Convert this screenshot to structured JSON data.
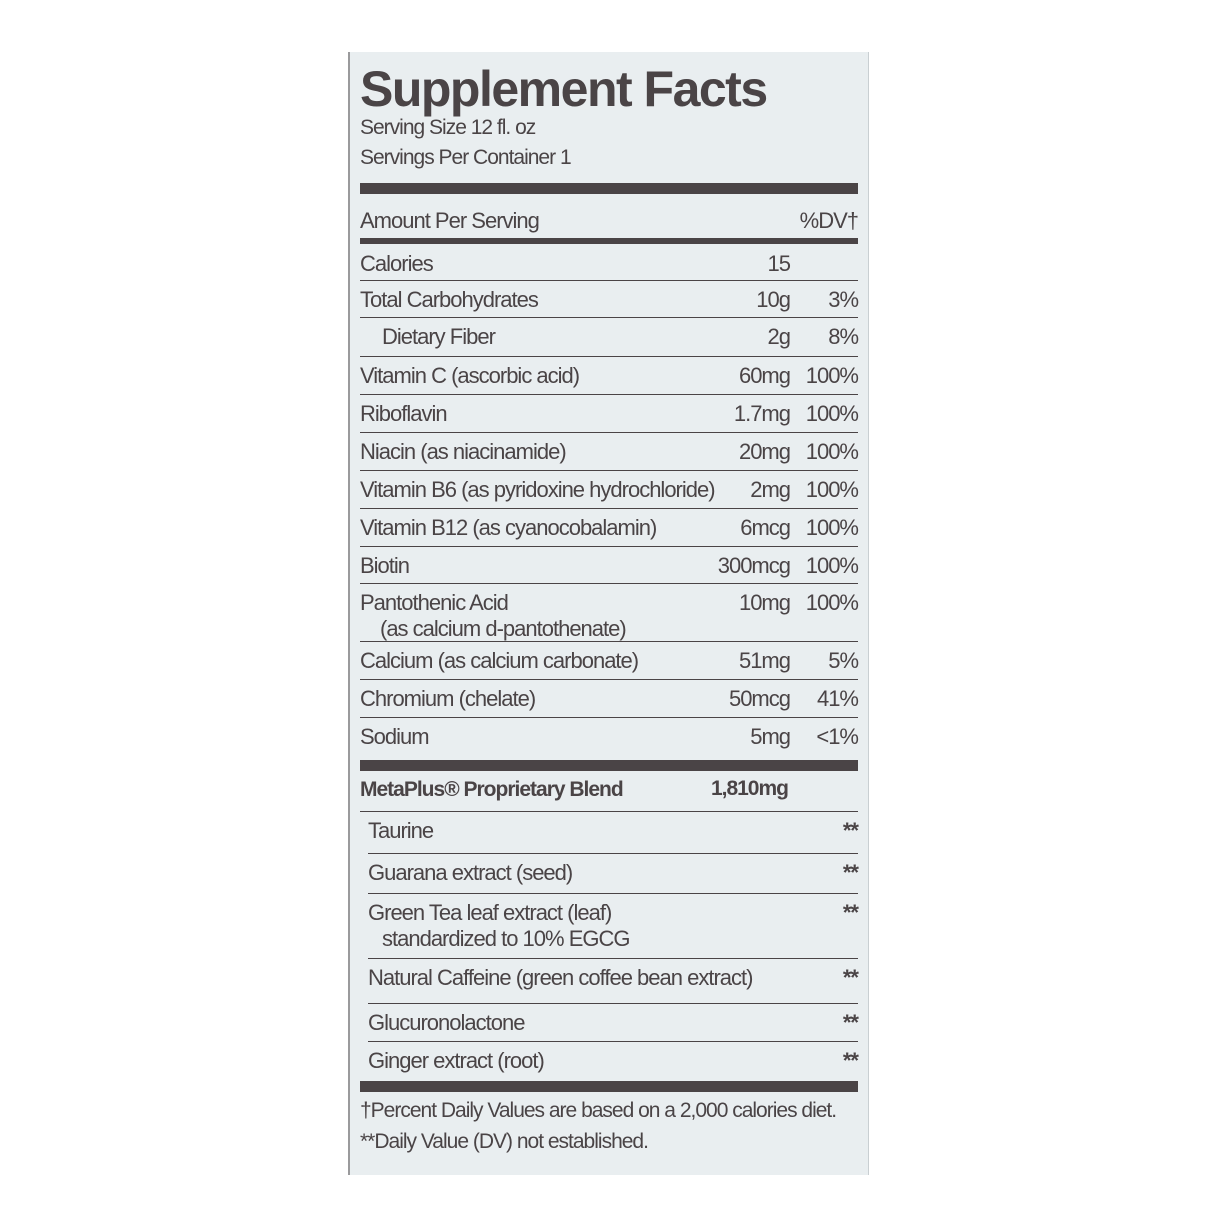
{
  "title": "Supplement Facts",
  "serving_size": "Serving Size 12 fl. oz",
  "servings_per_container": "Servings Per Container 1",
  "header": {
    "amount": "Amount Per Serving",
    "dv": "%DV†"
  },
  "nutrients": [
    {
      "name": "Calories",
      "amount": "15",
      "dv": ""
    },
    {
      "name": "Total Carbohydrates",
      "amount": "10g",
      "dv": "3%"
    },
    {
      "name": "Dietary Fiber",
      "amount": "2g",
      "dv": "8%",
      "indent": true
    },
    {
      "name": "Vitamin C (ascorbic acid)",
      "amount": "60mg",
      "dv": "100%"
    },
    {
      "name": "Riboflavin",
      "amount": "1.7mg",
      "dv": "100%"
    },
    {
      "name": "Niacin (as niacinamide)",
      "amount": "20mg",
      "dv": "100%"
    },
    {
      "name": "Vitamin B6 (as pyridoxine hydrochloride)",
      "amount": "2mg",
      "dv": "100%"
    },
    {
      "name": "Vitamin B12 (as cyanocobalamin)",
      "amount": "6mcg",
      "dv": "100%"
    },
    {
      "name": "Biotin",
      "amount": "300mcg",
      "dv": "100%"
    },
    {
      "name": "Pantothenic Acid",
      "name2": "(as calcium d-pantothenate)",
      "amount": "10mg",
      "dv": "100%"
    },
    {
      "name": "Calcium (as calcium carbonate)",
      "amount": "51mg",
      "dv": "5%"
    },
    {
      "name": "Chromium (chelate)",
      "amount": "50mcg",
      "dv": "41%"
    },
    {
      "name": "Sodium",
      "amount": "5mg",
      "dv": "<1%"
    }
  ],
  "blend": {
    "name": "MetaPlus® Proprietary Blend",
    "amount": "1,810mg",
    "items": [
      {
        "name": "Taurine",
        "dv": "**"
      },
      {
        "name": "Guarana extract (seed)",
        "dv": "**"
      },
      {
        "name": "Green Tea leaf extract (leaf)",
        "name2": "standardized to 10% EGCG",
        "dv": "**"
      },
      {
        "name": "Natural Caffeine (green coffee bean extract)",
        "dv": "**"
      },
      {
        "name": "Glucuronolactone",
        "dv": "**"
      },
      {
        "name": "Ginger extract (root)",
        "dv": "**"
      }
    ]
  },
  "footnotes": [
    "†Percent Daily Values are based on a 2,000 calories diet.",
    "**Daily Value (DV) not established."
  ]
}
